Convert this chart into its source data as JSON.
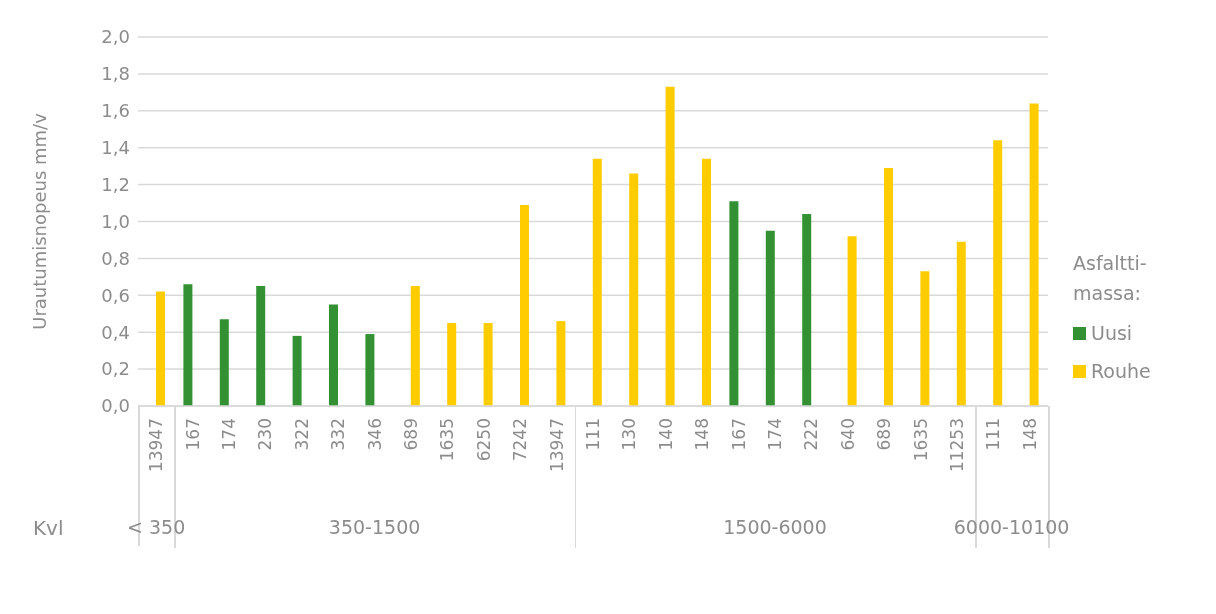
{
  "chart_data": {
    "type": "bar",
    "xlabel": "Kvl",
    "ylabel": "Urautumisnopeus mm/v",
    "legend_title": "Asfaltti-massa:",
    "categories": [
      "13947",
      "167",
      "174",
      "230",
      "322",
      "332",
      "346",
      "689",
      "1635",
      "6250",
      "7242",
      "13947",
      "111",
      "130",
      "140",
      "148",
      "167",
      "174",
      "222",
      "640",
      "689",
      "1635",
      "11253",
      "111",
      "148"
    ],
    "annotations": [
      "< 350",
      "350-1500",
      "1500-6000",
      "6000-10100"
    ],
    "series": [
      {
        "name": "Uusi",
        "color": "#339133",
        "values": [
          null,
          0.66,
          0.47,
          0.65,
          0.38,
          0.55,
          0.39,
          null,
          null,
          null,
          null,
          null,
          null,
          null,
          null,
          null,
          1.11,
          0.95,
          1.04,
          null,
          null,
          null,
          null,
          null,
          null
        ]
      },
      {
        "name": "Rouhe",
        "color": "#ffcc00",
        "values": [
          0.62,
          null,
          null,
          null,
          null,
          null,
          null,
          0.65,
          0.45,
          0.45,
          1.09,
          0.46,
          1.34,
          1.26,
          1.73,
          1.34,
          null,
          null,
          null,
          0.92,
          1.29,
          0.73,
          0.89,
          1.44,
          1.64
        ]
      }
    ],
    "ylim": [
      0,
      2
    ],
    "yticks": [
      {
        "value": 0,
        "label": "0,0"
      },
      {
        "value": 0.2,
        "label": "0,2"
      },
      {
        "value": 0.4,
        "label": "0,4"
      },
      {
        "value": 0.6,
        "label": "0,6"
      },
      {
        "value": 0.8,
        "label": "0,8"
      },
      {
        "value": 1,
        "label": "1,0"
      },
      {
        "value": 1.2,
        "label": "1,2"
      },
      {
        "value": 1.4,
        "label": "1,4"
      },
      {
        "value": 1.6,
        "label": "1,6"
      },
      {
        "value": 1.8,
        "label": "1,8"
      },
      {
        "value": 2,
        "label": "2,0"
      }
    ],
    "grid": "y",
    "legend": "right"
  }
}
